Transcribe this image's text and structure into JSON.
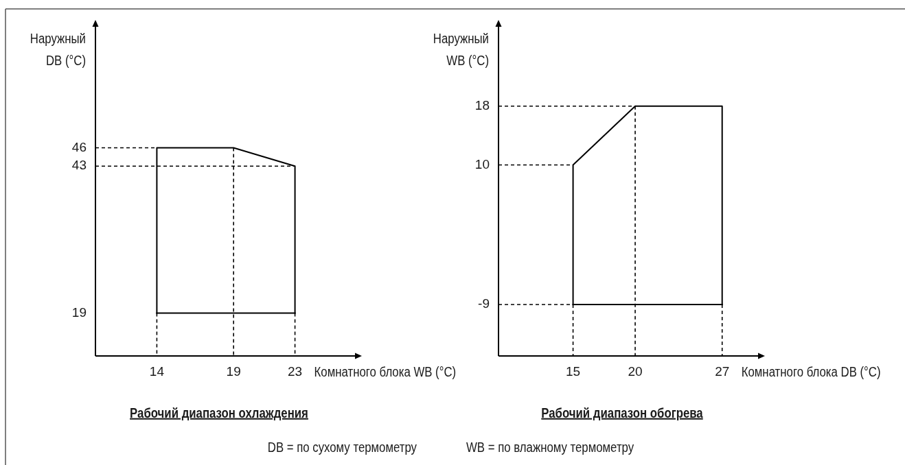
{
  "chart_data": [
    {
      "type": "line",
      "title": "Рабочий диапазон охлаждения",
      "xlabel": "Комнатного блока WB (°C)",
      "ylabel": "Наружный\nDB (°C)",
      "xlim": [
        10,
        27
      ],
      "ylim": [
        12,
        66
      ],
      "xticks": [
        14,
        19,
        23
      ],
      "yticks": [
        19,
        43,
        46
      ],
      "series": [
        {
          "color": "#000000",
          "x": [
            14,
            14,
            19,
            23,
            23
          ],
          "values": [
            19,
            46,
            46,
            43,
            19
          ]
        },
        {
          "color": "#000000",
          "x": [
            14,
            23
          ],
          "values": [
            19,
            19
          ]
        },
        {
          "color": "#000000",
          "line_style": "dashed",
          "x": [
            10,
            14
          ],
          "values": [
            46,
            46
          ]
        },
        {
          "color": "#000000",
          "line_style": "dashed",
          "x": [
            10,
            23
          ],
          "values": [
            43,
            43
          ]
        },
        {
          "color": "#000000",
          "line_style": "dashed",
          "x": [
            14,
            14
          ],
          "values": [
            19,
            12
          ]
        },
        {
          "color": "#000000",
          "line_style": "dashed",
          "x": [
            19,
            19
          ],
          "values": [
            46,
            12
          ]
        },
        {
          "color": "#000000",
          "line_style": "dashed",
          "x": [
            23,
            23
          ],
          "values": [
            19,
            12
          ]
        }
      ],
      "annotations": [
        "DB = по сухому термометру"
      ]
    },
    {
      "type": "line",
      "title": "Рабочий диапазон обогрева",
      "xlabel": "Комнатного блока DB (°C)",
      "ylabel": "Наружный\nWB (°C)",
      "xlim": [
        9,
        30
      ],
      "ylim": [
        -16,
        29
      ],
      "xticks": [
        15,
        20,
        27
      ],
      "yticks": [
        -9,
        10,
        18
      ],
      "series": [
        {
          "color": "#000000",
          "x": [
            15,
            15,
            20,
            27,
            27
          ],
          "values": [
            -9,
            10,
            18,
            18,
            -9
          ]
        },
        {
          "color": "#000000",
          "x": [
            15,
            27
          ],
          "values": [
            -9,
            -9
          ]
        },
        {
          "color": "#000000",
          "line_style": "dashed",
          "x": [
            9,
            20
          ],
          "values": [
            18,
            18
          ]
        },
        {
          "color": "#000000",
          "line_style": "dashed",
          "x": [
            9,
            15
          ],
          "values": [
            10,
            10
          ]
        },
        {
          "color": "#000000",
          "line_style": "dashed",
          "x": [
            9,
            15
          ],
          "values": [
            -9,
            -9
          ]
        },
        {
          "color": "#000000",
          "line_style": "dashed",
          "x": [
            15,
            15
          ],
          "values": [
            -9,
            -16
          ]
        },
        {
          "color": "#000000",
          "line_style": "dashed",
          "x": [
            20,
            20
          ],
          "values": [
            18,
            -16
          ]
        },
        {
          "color": "#000000",
          "line_style": "dashed",
          "x": [
            27,
            27
          ],
          "values": [
            -9,
            -16
          ]
        }
      ],
      "annotations": [
        "WB = по влажному термометру"
      ]
    }
  ]
}
